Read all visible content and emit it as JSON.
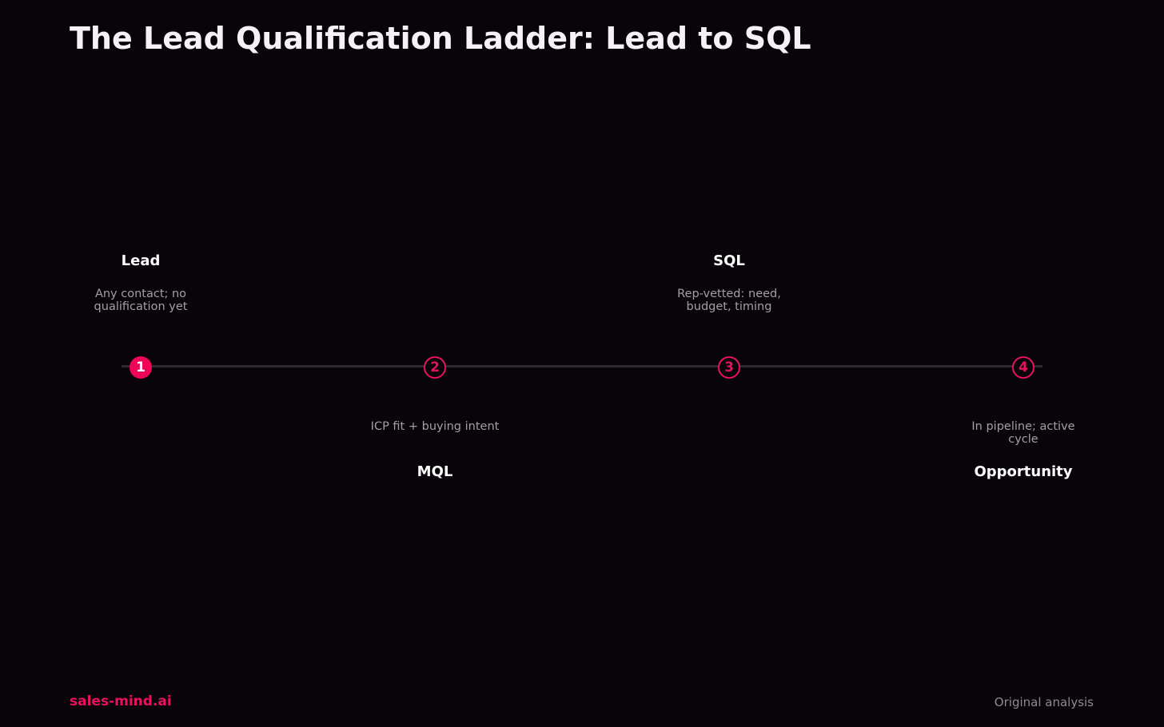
{
  "title": "The Lead Qualification Ladder: Lead to SQL",
  "accent_color": "#e8115f",
  "background_color": "#08040a",
  "steps": [
    {
      "number": "1",
      "name": "Lead",
      "description": "Any contact; no qualification yet",
      "label_position": "above",
      "marker_style": "filled"
    },
    {
      "number": "2",
      "name": "MQL",
      "description": "ICP fit + buying intent",
      "label_position": "below",
      "marker_style": "outline"
    },
    {
      "number": "3",
      "name": "SQL",
      "description": "Rep-vetted: need, budget, timing",
      "label_position": "above",
      "marker_style": "outline"
    },
    {
      "number": "4",
      "name": "Opportunity",
      "description": "In pipeline; active cycle",
      "label_position": "below",
      "marker_style": "outline"
    }
  ],
  "footer": {
    "brand": "sales-mind.ai",
    "source": "Original analysis"
  }
}
